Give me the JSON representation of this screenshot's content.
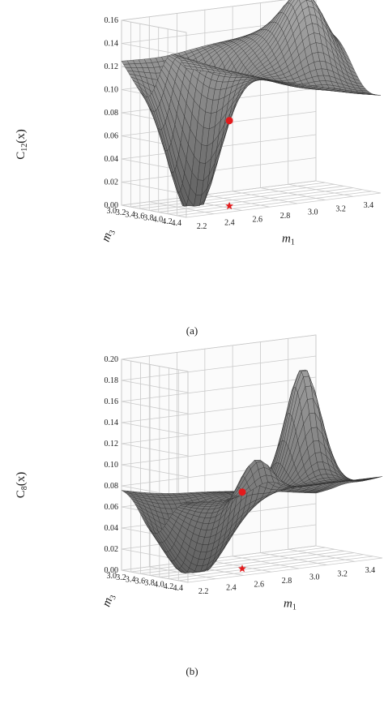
{
  "figure": {
    "panels": [
      {
        "caption": "(a)",
        "zlabel_main": "C",
        "zlabel_sub": "12",
        "zlabel_tail": "(x)"
      },
      {
        "caption": "(b)",
        "zlabel_main": "C",
        "zlabel_sub": "8",
        "zlabel_tail": "(x)"
      }
    ]
  },
  "chart_data": [
    {
      "type": "surface3d",
      "title": "",
      "zlabel": "C12(x)",
      "xlabel": "m1",
      "ylabel": "m3",
      "xlim": [
        2.1,
        3.5
      ],
      "ylim": [
        2.9,
        4.4
      ],
      "zlim": [
        -0.02,
        0.16
      ],
      "x_ticks": [
        "2.2",
        "2.4",
        "2.6",
        "2.8",
        "3.0",
        "3.2",
        "3.4"
      ],
      "y_ticks": [
        "3.0",
        "3.2",
        "3.4",
        "3.6",
        "3.8",
        "4.0",
        "4.2",
        "4.4"
      ],
      "z_ticks": [
        "0.00",
        "0.02",
        "0.04",
        "0.06",
        "0.08",
        "0.10",
        "0.12",
        "0.14",
        "0.16"
      ],
      "grid": true,
      "surface_color": "#5e5e5e",
      "markers": [
        {
          "shape": "circle",
          "color": "#e31a1c",
          "x": 2.55,
          "y": 3.95,
          "z": 0.063
        },
        {
          "shape": "star",
          "color": "#e31a1c",
          "x": 2.55,
          "y": 3.95,
          "z": -0.02
        }
      ]
    },
    {
      "type": "surface3d",
      "title": "",
      "zlabel": "C8(x)",
      "xlabel": "m1",
      "ylabel": "m3",
      "xlim": [
        2.1,
        3.5
      ],
      "ylim": [
        2.9,
        4.4
      ],
      "zlim": [
        -0.02,
        0.2
      ],
      "x_ticks": [
        "2.2",
        "2.4",
        "2.6",
        "2.8",
        "3.0",
        "3.2",
        "3.4"
      ],
      "y_ticks": [
        "3.0",
        "3.2",
        "3.4",
        "3.6",
        "3.8",
        "4.0",
        "4.2",
        "4.4"
      ],
      "z_ticks": [
        "0.00",
        "0.02",
        "0.04",
        "0.06",
        "0.08",
        "0.10",
        "0.12",
        "0.14",
        "0.16",
        "0.18",
        "0.20"
      ],
      "grid": true,
      "surface_color": "#5e5e5e",
      "markers": [
        {
          "shape": "circle",
          "color": "#e31a1c",
          "x": 2.65,
          "y": 3.9,
          "z": 0.06
        },
        {
          "shape": "star",
          "color": "#e31a1c",
          "x": 2.65,
          "y": 3.9,
          "z": -0.02
        }
      ]
    }
  ]
}
